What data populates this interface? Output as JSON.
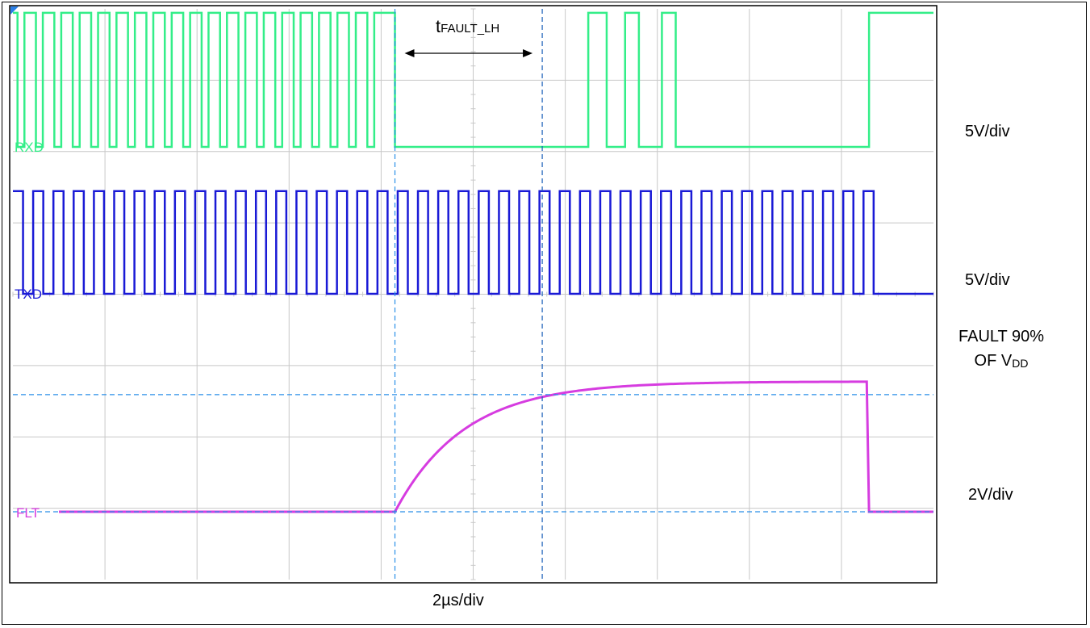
{
  "chart_data": {
    "type": "line",
    "title": "",
    "timebase": "2µs/div",
    "grid": true,
    "grid_divisions": {
      "x": 10,
      "y": 8
    },
    "x_unit": "µs",
    "x_range_us": [
      0,
      20
    ],
    "series": [
      {
        "name": "RXD",
        "color": "#33ee88",
        "scale": "5V/div",
        "high_v": 9.4,
        "low_v": 0.0,
        "high_intervals_us": [
          [
            0.0,
            0.1
          ],
          [
            0.25,
            0.5
          ],
          [
            0.65,
            0.9
          ],
          [
            1.05,
            1.3
          ],
          [
            1.45,
            1.7
          ],
          [
            1.85,
            2.1
          ],
          [
            2.25,
            2.5
          ],
          [
            2.65,
            2.9
          ],
          [
            3.05,
            3.3
          ],
          [
            3.45,
            3.7
          ],
          [
            3.85,
            4.1
          ],
          [
            4.25,
            4.5
          ],
          [
            4.65,
            4.9
          ],
          [
            5.05,
            5.3
          ],
          [
            5.45,
            5.7
          ],
          [
            5.85,
            6.1
          ],
          [
            6.25,
            6.5
          ],
          [
            6.65,
            6.9
          ],
          [
            7.05,
            7.3
          ],
          [
            7.45,
            7.7
          ],
          [
            7.85,
            8.3
          ],
          [
            12.5,
            12.9
          ],
          [
            13.3,
            13.6
          ],
          [
            14.1,
            14.4
          ],
          [
            18.6,
            20.0
          ]
        ]
      },
      {
        "name": "TXD",
        "color": "#1a1ad6",
        "scale": "5V/div",
        "high_v": 7.2,
        "low_v": 0.0,
        "toggle_period_us": 0.44,
        "toggle_stop_us": 18.8
      },
      {
        "name": "FLT",
        "color": "#d63ce0",
        "scale": "2V/div",
        "baseline_v": 0.0,
        "rise_start_us": 8.3,
        "rise_time_constant_us": 1.5,
        "final_v": 3.65,
        "fall_us": 18.6
      }
    ],
    "cursors": {
      "vertical_us": [
        8.3,
        11.5
      ],
      "horizontal": [
        "FAULT 90% OF VDD",
        "FLT baseline"
      ]
    },
    "measurement": {
      "label_main": "t",
      "label_sub": "FAULT_LH"
    }
  },
  "labels": {
    "rxd_scale": "5V/div",
    "txd_scale": "5V/div",
    "fault_line1": "FAULT 90%",
    "fault_line2_prefix": "OF V",
    "fault_line2_sub": "DD",
    "flt_scale": "2V/div",
    "timebase": "2µs/div",
    "meas_main": "t",
    "meas_sub": "FAULT_LH"
  }
}
